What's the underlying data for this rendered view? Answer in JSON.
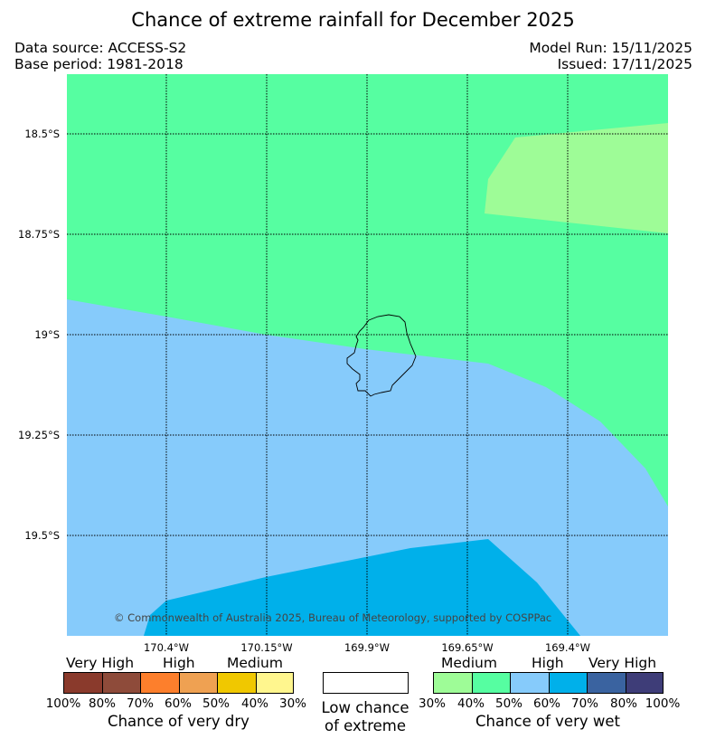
{
  "title": "Chance of extreme rainfall for December 2025",
  "data_source": "Data source: ACCESS-S2",
  "base_period": "Base period: 1981-2018",
  "model_run": "Model Run: 15/11/2025",
  "issued": "Issued: 17/11/2025",
  "map": {
    "lat_labels": [
      "18.5°S",
      "18.75°S",
      "19°S",
      "19.25°S",
      "19.5°S"
    ],
    "lon_labels": [
      "170.4°W",
      "170.15°W",
      "169.9°W",
      "169.65°W",
      "169.4°W"
    ],
    "copyright": "© Commonwealth of Australia 2025, Bureau of Meteorology, supported by COSPPac",
    "region_colors": {
      "wet_medium_50": "#56fea1",
      "wet_medium_40": "#9efc97",
      "wet_high_60": "#86cbfb",
      "wet_high_70": "#00b0ea"
    }
  },
  "legend": {
    "dry": {
      "categories": [
        "Very High",
        "High",
        "Medium"
      ],
      "percentages": [
        "100%",
        "80%",
        "70%",
        "60%",
        "50%",
        "40%",
        "30%"
      ],
      "colors": [
        "#8a3a2c",
        "#8e4b3a",
        "#fd7f2c",
        "#efa152",
        "#f0c800",
        "#fff68e"
      ],
      "title": "Chance of very dry"
    },
    "low": {
      "title_line1": "Low chance",
      "title_line2": "of extreme",
      "color": "#ffffff"
    },
    "wet": {
      "categories": [
        "Medium",
        "High",
        "Very High"
      ],
      "percentages": [
        "30%",
        "40%",
        "50%",
        "60%",
        "70%",
        "80%",
        "100%"
      ],
      "colors": [
        "#9efc97",
        "#56fea1",
        "#86cbfb",
        "#00b0ea",
        "#3a63a0",
        "#3e3d78"
      ],
      "title": "Chance of very wet"
    }
  }
}
